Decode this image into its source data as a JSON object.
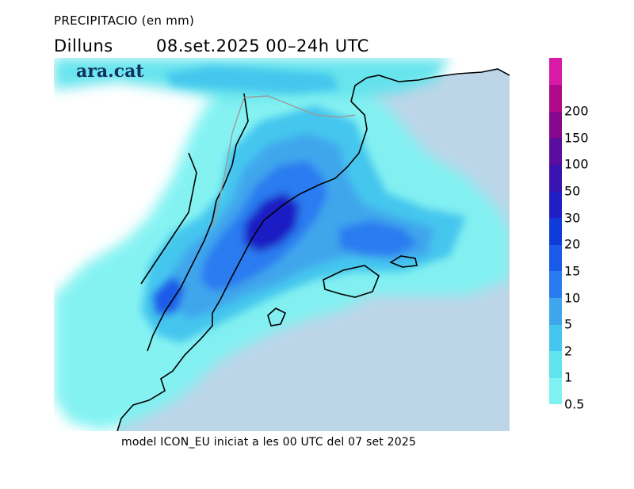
{
  "header": {
    "title": "PRECIPITACIO (en mm)",
    "day": "Dilluns",
    "date": "08.set.2025 00–24h UTC"
  },
  "map": {
    "logo": "ara.cat",
    "sea_color": "#bcd6e8",
    "coast_color": "#000000",
    "border_color": "#9a9a9a"
  },
  "footer": {
    "text": "model ICON_EU iniciat a les 00 UTC del 07 set 2025"
  },
  "legend": {
    "levels": [
      {
        "label": "0.5",
        "color": "#7ff2f2"
      },
      {
        "label": "1",
        "color": "#5fe3ec"
      },
      {
        "label": "2",
        "color": "#44c6ee"
      },
      {
        "label": "5",
        "color": "#3fa6ec"
      },
      {
        "label": "10",
        "color": "#2a7bf0"
      },
      {
        "label": "15",
        "color": "#1a5ae8"
      },
      {
        "label": "20",
        "color": "#0f3bd8"
      },
      {
        "label": "30",
        "color": "#1f1fc4"
      },
      {
        "label": "50",
        "color": "#3a14b0"
      },
      {
        "label": "100",
        "color": "#5b0d9e"
      },
      {
        "label": "150",
        "color": "#86078c"
      },
      {
        "label": "200",
        "color": "#b00a8a"
      },
      {
        "label": "",
        "color": "#d81aa8"
      }
    ]
  }
}
